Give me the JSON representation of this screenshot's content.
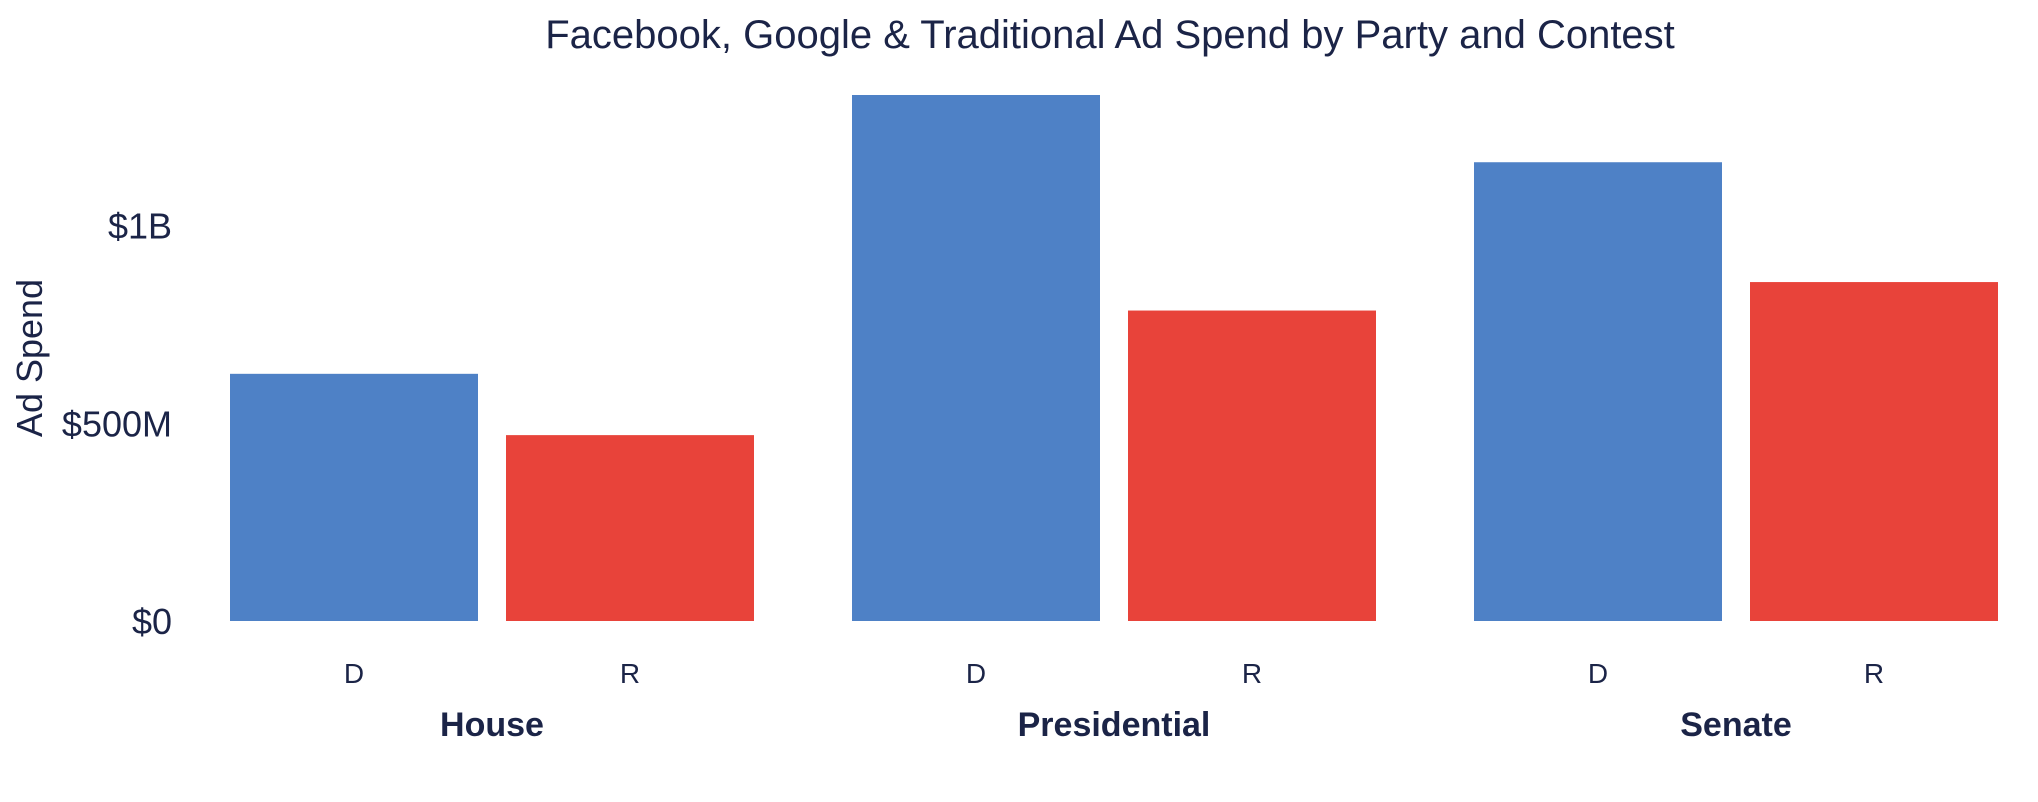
{
  "chart_data": {
    "type": "bar",
    "title": "Facebook, Google & Traditional Ad Spend by Party and Contest",
    "xlabel": "",
    "ylabel": "Ad Spend",
    "ylim": [
      0,
      1330
    ],
    "yticks": [
      {
        "value": 0,
        "label": "$0"
      },
      {
        "value": 500,
        "label": "$500M"
      },
      {
        "value": 1000,
        "label": "$1B"
      }
    ],
    "grid": false,
    "legend": "none",
    "value_unit": "millions of USD",
    "groups": [
      {
        "name": "House",
        "bars": [
          {
            "party": "D",
            "value": 625
          },
          {
            "party": "R",
            "value": 470
          }
        ]
      },
      {
        "name": "Presidential",
        "bars": [
          {
            "party": "D",
            "value": 1330
          },
          {
            "party": "R",
            "value": 785
          }
        ]
      },
      {
        "name": "Senate",
        "bars": [
          {
            "party": "D",
            "value": 1160
          },
          {
            "party": "R",
            "value": 857
          }
        ]
      }
    ],
    "colors": {
      "D": "#4e81c6",
      "R": "#e8433a"
    }
  }
}
